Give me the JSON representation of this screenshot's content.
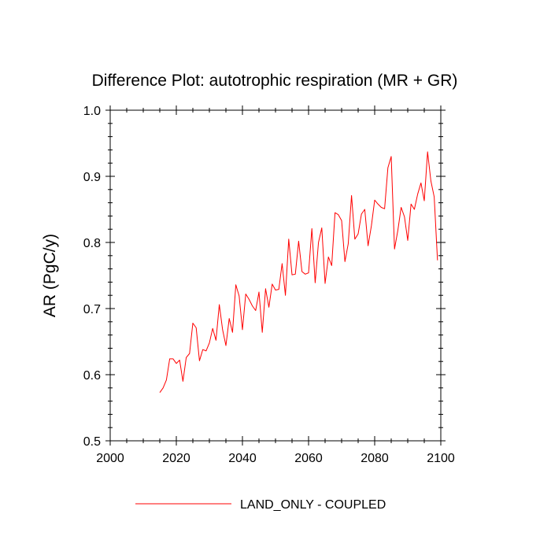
{
  "chart_data": {
    "type": "line",
    "title": "Difference Plot: autotrophic respiration (MR + GR)",
    "xlabel": "",
    "ylabel": "AR  (PgC/y)",
    "xlim": [
      2000,
      2100
    ],
    "ylim": [
      0.5,
      1.0
    ],
    "x_ticks": [
      2000,
      2020,
      2040,
      2060,
      2080,
      2100
    ],
    "x_tick_labels": [
      "2000",
      "2020",
      "2040",
      "2060",
      "2080",
      "2100"
    ],
    "y_ticks": [
      0.5,
      0.6,
      0.7,
      0.8,
      0.9,
      1.0
    ],
    "y_tick_labels": [
      "0.5",
      "0.6",
      "0.7",
      "0.8",
      "0.9",
      "1.0"
    ],
    "grid": false,
    "legend_position": "bottom",
    "series": [
      {
        "name": "LAND_ONLY - COUPLED",
        "color": "#ff0000",
        "x": [
          2015,
          2016,
          2017,
          2018,
          2019,
          2020,
          2021,
          2022,
          2023,
          2024,
          2025,
          2026,
          2027,
          2028,
          2029,
          2030,
          2031,
          2032,
          2033,
          2034,
          2035,
          2036,
          2037,
          2038,
          2039,
          2040,
          2041,
          2042,
          2043,
          2044,
          2045,
          2046,
          2047,
          2048,
          2049,
          2050,
          2051,
          2052,
          2053,
          2054,
          2055,
          2056,
          2057,
          2058,
          2059,
          2060,
          2061,
          2062,
          2063,
          2064,
          2065,
          2066,
          2067,
          2068,
          2069,
          2070,
          2071,
          2072,
          2073,
          2074,
          2075,
          2076,
          2077,
          2078,
          2079,
          2080,
          2081,
          2082,
          2083,
          2084,
          2085,
          2086,
          2087,
          2088,
          2089,
          2090,
          2091,
          2092,
          2093,
          2094,
          2095,
          2096,
          2097,
          2098,
          2099
        ],
        "y": [
          0.573,
          0.58,
          0.592,
          0.624,
          0.624,
          0.617,
          0.622,
          0.59,
          0.626,
          0.632,
          0.678,
          0.671,
          0.621,
          0.638,
          0.636,
          0.648,
          0.67,
          0.652,
          0.706,
          0.668,
          0.644,
          0.685,
          0.664,
          0.736,
          0.719,
          0.668,
          0.722,
          0.714,
          0.704,
          0.697,
          0.725,
          0.664,
          0.73,
          0.702,
          0.737,
          0.728,
          0.729,
          0.768,
          0.72,
          0.805,
          0.751,
          0.752,
          0.802,
          0.756,
          0.752,
          0.754,
          0.821,
          0.739,
          0.8,
          0.822,
          0.738,
          0.778,
          0.765,
          0.845,
          0.842,
          0.833,
          0.771,
          0.798,
          0.871,
          0.805,
          0.813,
          0.843,
          0.85,
          0.795,
          0.825,
          0.864,
          0.858,
          0.853,
          0.851,
          0.913,
          0.93,
          0.79,
          0.818,
          0.853,
          0.839,
          0.803,
          0.858,
          0.85,
          0.873,
          0.89,
          0.863,
          0.937,
          0.893,
          0.869,
          0.773
        ]
      }
    ]
  }
}
